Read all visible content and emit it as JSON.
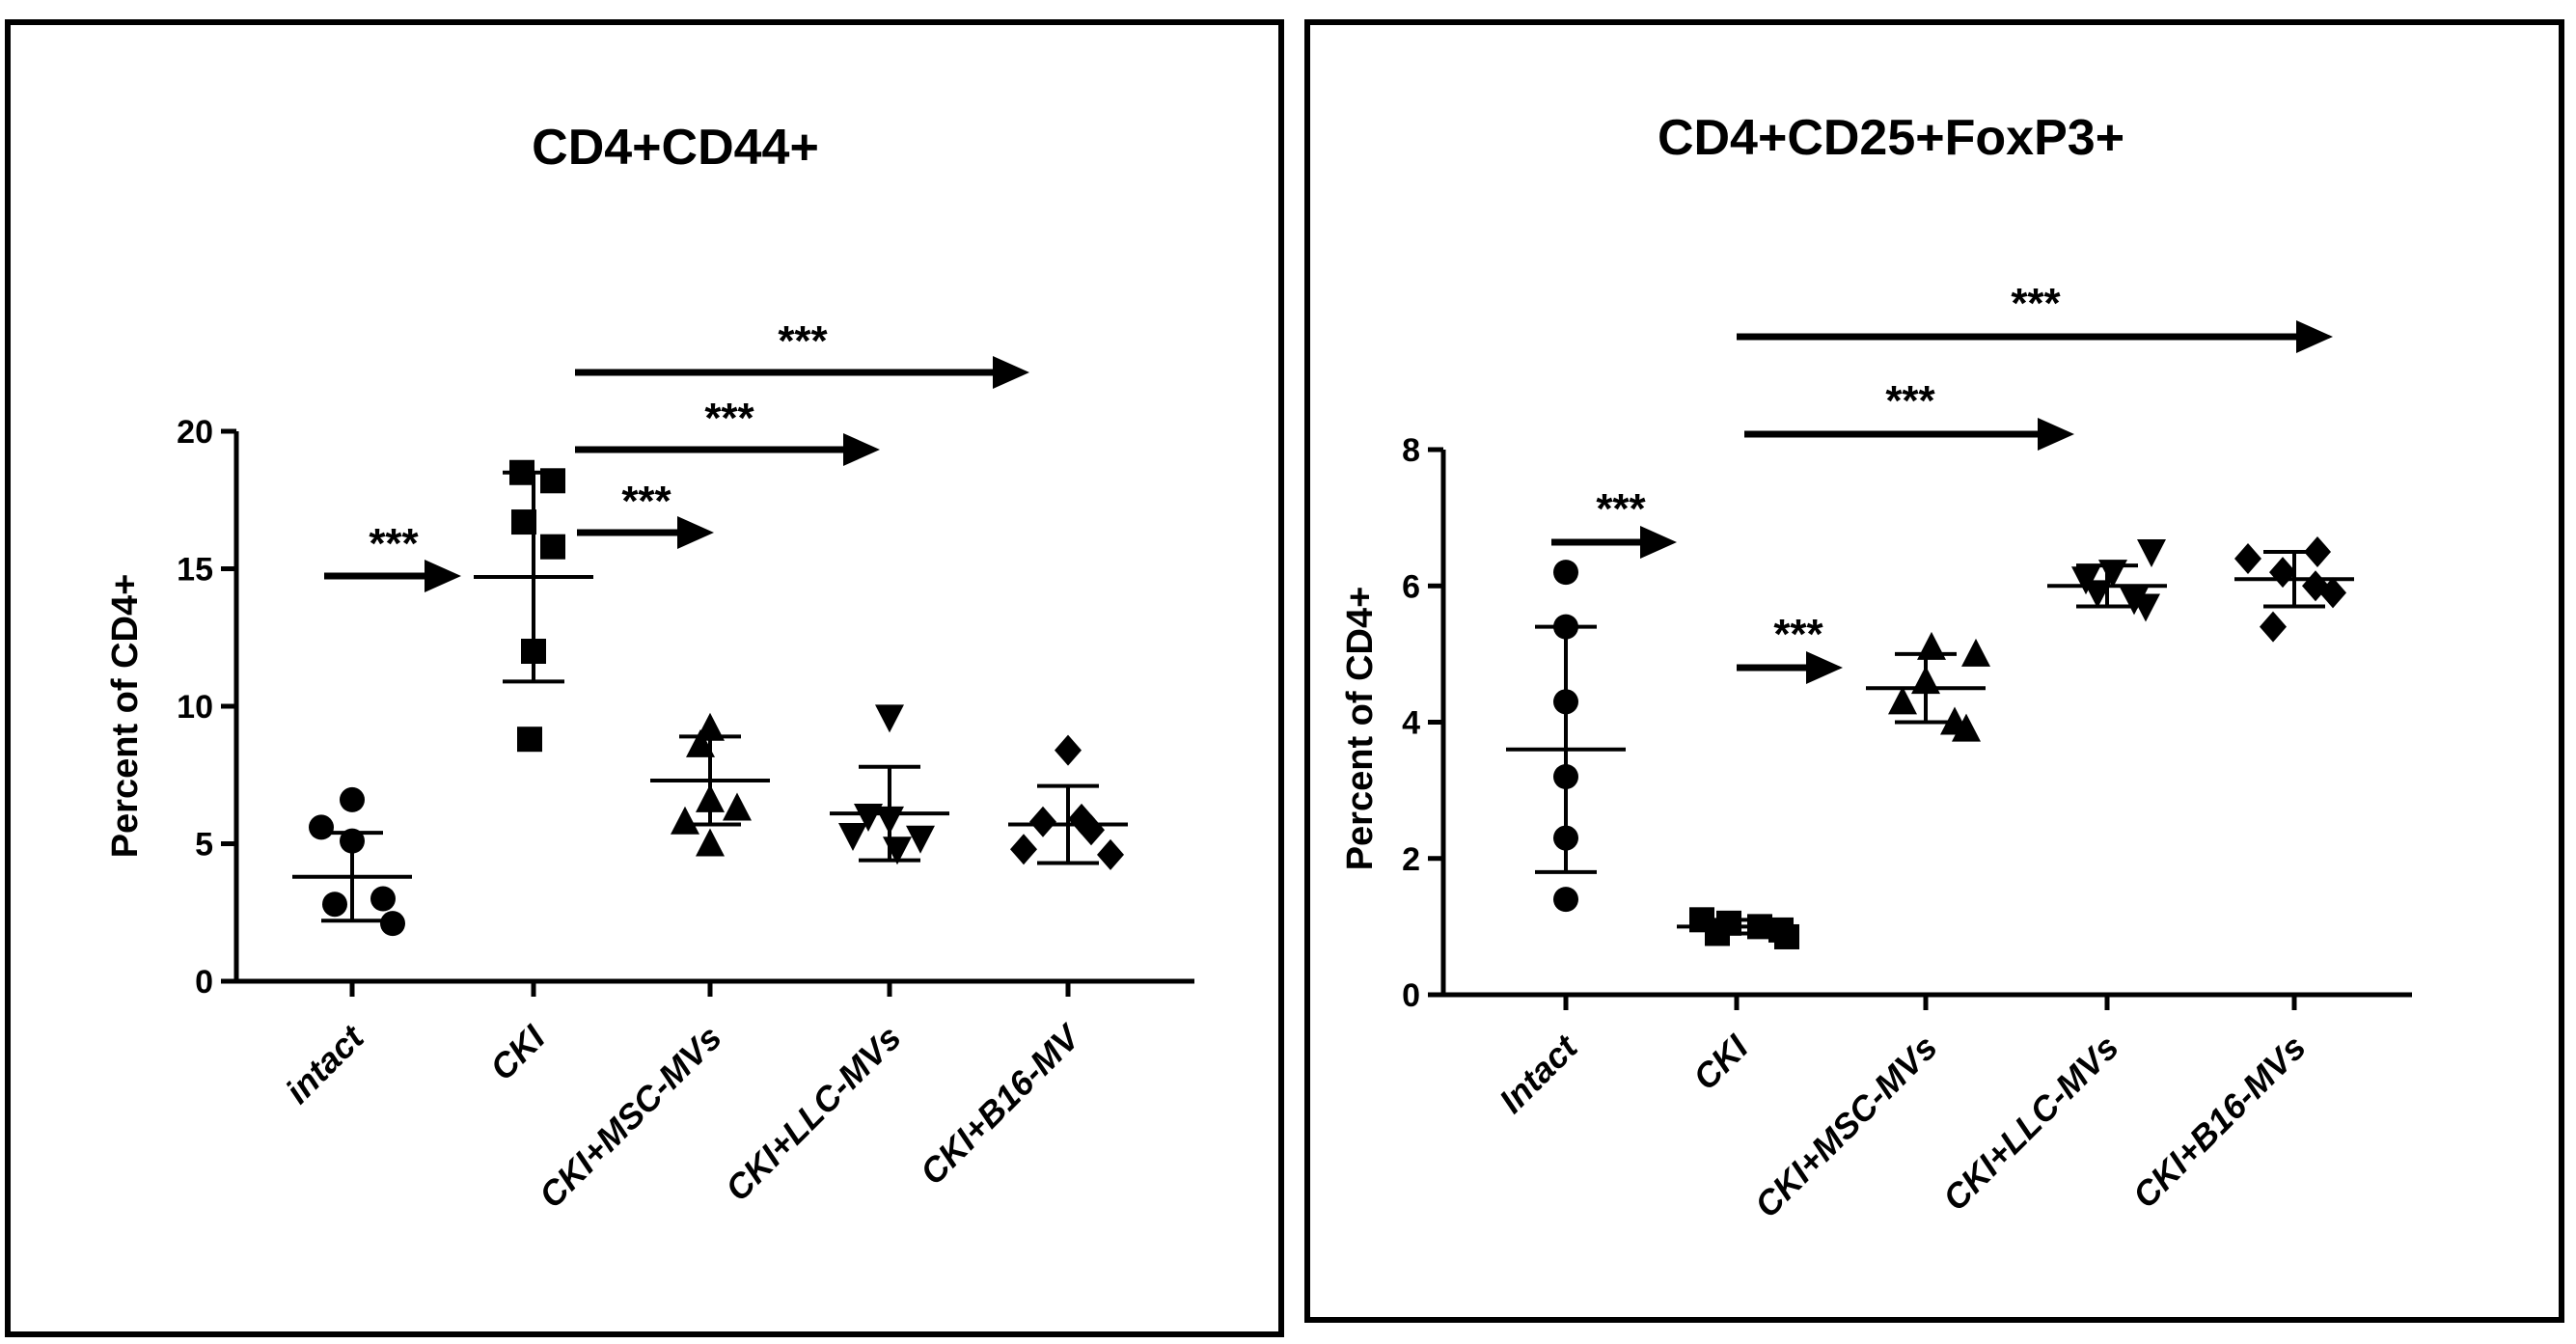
{
  "chart_data": [
    {
      "type": "scatter",
      "title": "CD4+CD44+",
      "ylabel": "Percent of CD4+",
      "ylim": [
        0,
        20
      ],
      "yticks": [
        0,
        5,
        10,
        15,
        20
      ],
      "categories": [
        "intact",
        "CKI",
        "CKI+MSC-MVs",
        "CKI+LLC-MVs",
        "CKI+B16-MV"
      ],
      "markers": [
        "circle",
        "square",
        "triangle-up",
        "triangle-down",
        "diamond"
      ],
      "points": [
        [
          6.6,
          5.6,
          5.1,
          3.0,
          2.8,
          2.1
        ],
        [
          18.5,
          18.2,
          16.7,
          15.8,
          12.0,
          8.8
        ],
        [
          9.2,
          8.6,
          6.6,
          6.3,
          5.8,
          5.0
        ],
        [
          9.6,
          6.0,
          5.9,
          5.3,
          5.2,
          4.8
        ],
        [
          8.4,
          5.9,
          5.8,
          5.5,
          4.8,
          4.6
        ]
      ],
      "mean": [
        3.8,
        14.7,
        7.3,
        6.1,
        5.7
      ],
      "error_low": [
        2.2,
        10.9,
        5.7,
        4.4,
        4.3
      ],
      "error_high": [
        5.4,
        18.5,
        8.9,
        7.8,
        7.1
      ],
      "comparisons": [
        {
          "from": "intact",
          "to": "CKI",
          "label": "***"
        },
        {
          "from": "CKI",
          "to": "CKI+MSC-MVs",
          "label": "***"
        },
        {
          "from": "CKI",
          "to": "CKI+LLC-MVs",
          "label": "***"
        },
        {
          "from": "CKI",
          "to": "CKI+B16-MV",
          "label": "***"
        }
      ]
    },
    {
      "type": "scatter",
      "title": "CD4+CD25+FoxP3+",
      "ylabel": "Percent of CD4+",
      "ylim": [
        0,
        8
      ],
      "yticks": [
        0,
        2,
        4,
        6,
        8
      ],
      "categories": [
        "Intact",
        "CKI",
        "CKI+MSC-MVs",
        "CKI+LLC-MVs",
        "CKI+B16-MVs"
      ],
      "markers": [
        "circle",
        "square",
        "triangle-up",
        "triangle-down",
        "diamond"
      ],
      "points": [
        [
          6.2,
          5.4,
          4.3,
          3.2,
          2.3,
          1.4
        ],
        [
          1.1,
          1.05,
          1.0,
          0.95,
          0.9,
          0.85
        ],
        [
          5.1,
          5.0,
          4.6,
          4.3,
          4.0,
          3.9
        ],
        [
          6.5,
          6.2,
          6.1,
          5.9,
          5.8,
          5.7
        ],
        [
          6.5,
          6.4,
          6.2,
          6.0,
          5.9,
          5.4
        ]
      ],
      "mean": [
        3.6,
        1.0,
        4.5,
        6.0,
        6.1
      ],
      "error_low": [
        1.8,
        0.9,
        4.0,
        5.7,
        5.7
      ],
      "error_high": [
        5.4,
        1.1,
        5.0,
        6.3,
        6.5
      ],
      "comparisons": [
        {
          "from": "Intact",
          "to": "CKI",
          "label": "***"
        },
        {
          "from": "CKI",
          "to": "CKI+MSC-MVs",
          "label": "***"
        },
        {
          "from": "CKI",
          "to": "CKI+LLC-MVs",
          "label": "***"
        },
        {
          "from": "CKI",
          "to": "CKI+B16-MVs",
          "label": "***"
        }
      ]
    }
  ]
}
